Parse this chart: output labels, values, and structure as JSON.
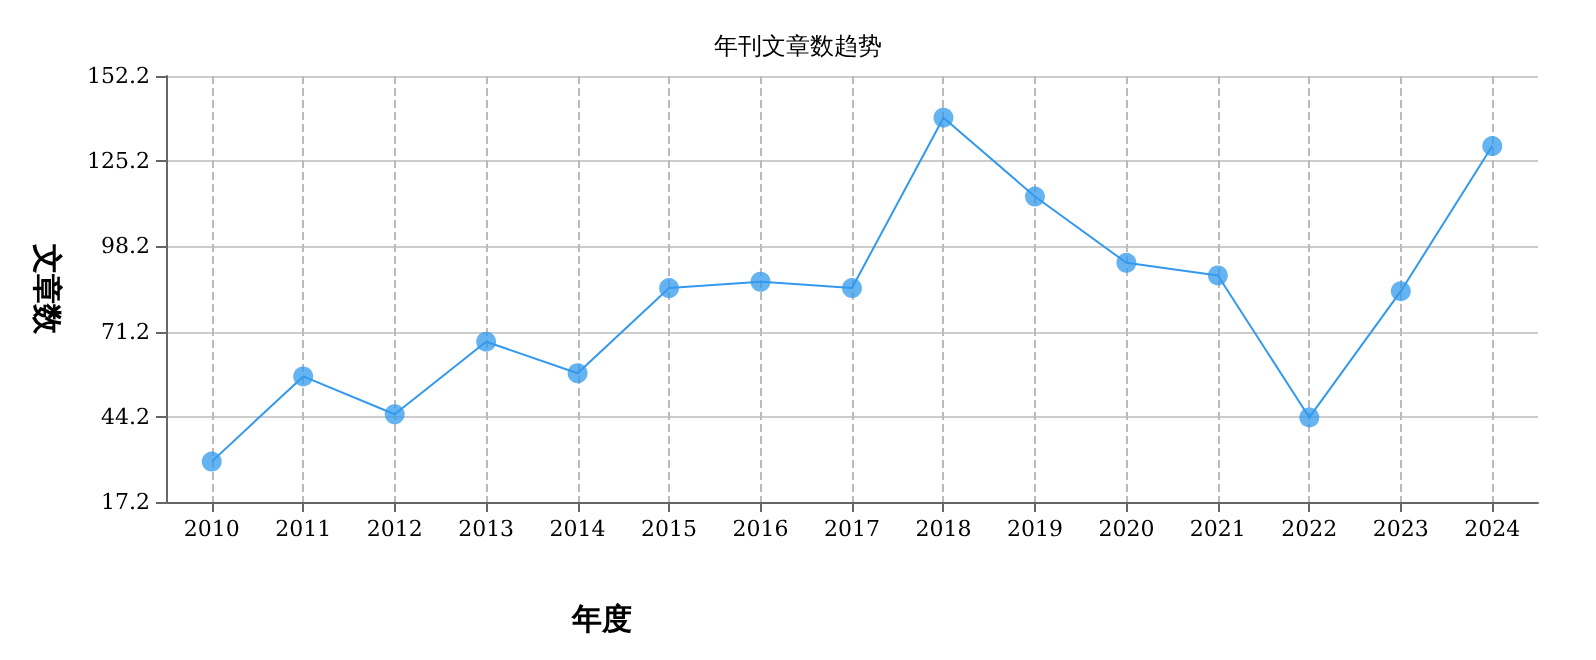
{
  "chart_data": {
    "type": "line",
    "title": "年刊文章数趋势",
    "xlabel": "年度",
    "ylabel": "文章数",
    "categories": [
      "2010",
      "2011",
      "2012",
      "2013",
      "2014",
      "2015",
      "2016",
      "2017",
      "2018",
      "2019",
      "2020",
      "2021",
      "2022",
      "2023",
      "2024"
    ],
    "series": [
      {
        "color": "#3399ee",
        "values": [
          30,
          57,
          45,
          68,
          58,
          85,
          87,
          85,
          139,
          114,
          93,
          89,
          44,
          84,
          130
        ]
      }
    ],
    "ylim": [
      17.2,
      152.2
    ],
    "yticks": [
      17.2,
      44.2,
      71.2,
      98.2,
      125.2,
      152.2
    ],
    "grid": true,
    "marker": "circle",
    "line_style": "solid"
  }
}
